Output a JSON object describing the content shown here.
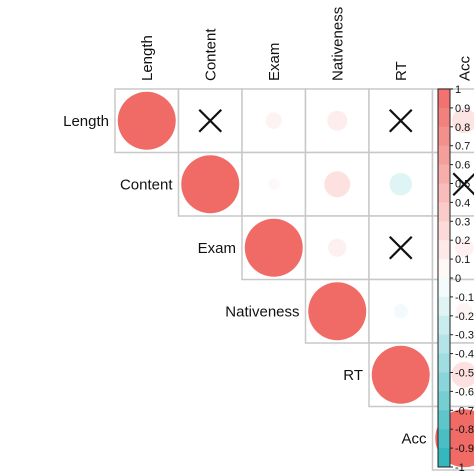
{
  "chart_data": {
    "type": "heatmap",
    "title": "",
    "variables": [
      "Length",
      "Content",
      "Exam",
      "Nativeness",
      "RT",
      "Acc"
    ],
    "matrix_shape": "upper",
    "glyph": "circle",
    "insignificant_marker": "X",
    "correlations": [
      [
        1.0,
        null,
        0.08,
        0.12,
        null,
        0.18
      ],
      [
        null,
        1.0,
        0.04,
        0.2,
        -0.15,
        null
      ],
      [
        0.08,
        0.04,
        1.0,
        0.1,
        null,
        0.1
      ],
      [
        0.12,
        0.2,
        0.1,
        1.0,
        -0.06,
        0.08
      ],
      [
        null,
        -0.15,
        null,
        -0.06,
        1.0,
        0.2
      ],
      [
        0.18,
        null,
        0.1,
        0.08,
        0.2,
        1.0
      ]
    ],
    "colorbar": {
      "range": [
        -1,
        1
      ],
      "ticks": [
        "1",
        "0.9",
        "0.8",
        "0.7",
        "0.6",
        "0.5",
        "0.4",
        "0.3",
        "0.2",
        "0.1",
        "0",
        "-0.1",
        "-0.2",
        "-0.3",
        "-0.4",
        "-0.5",
        "-0.6",
        "-0.7",
        "-0.8",
        "-0.9",
        "-1"
      ],
      "positive_color": "#f06b66",
      "negative_color": "#29b3b9",
      "zero_color": "#ffffff"
    }
  }
}
